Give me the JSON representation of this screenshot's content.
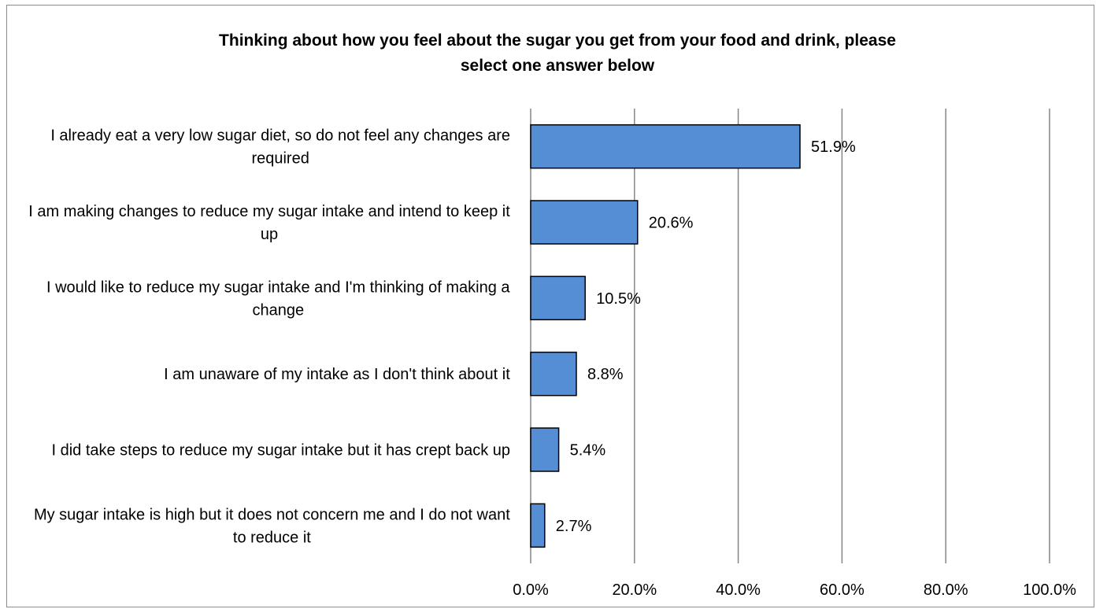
{
  "chart_data": {
    "type": "bar",
    "orientation": "horizontal",
    "title": "Thinking about how you feel about the sugar you get from your food and drink, please select one answer below",
    "categories": [
      "I already eat a very low sugar diet, so do not feel any changes are required",
      "I am making changes to reduce my sugar intake and intend to keep it up",
      "I would like to reduce my sugar intake and I'm thinking of making a change",
      "I am unaware of my intake as I don't think about it",
      "I did take steps to reduce my sugar intake but it has crept back up",
      "My sugar intake is high but it does not concern me and I do not want to reduce it"
    ],
    "values": [
      51.9,
      20.6,
      10.5,
      8.8,
      5.4,
      2.7
    ],
    "data_labels": [
      "51.9%",
      "20.6%",
      "10.5%",
      "8.8%",
      "5.4%",
      "2.7%"
    ],
    "xlim": [
      0,
      100
    ],
    "xticks": [
      0,
      20,
      40,
      60,
      80,
      100
    ],
    "xtick_labels": [
      "0.0%",
      "20.0%",
      "40.0%",
      "60.0%",
      "80.0%",
      "100.0%"
    ],
    "xlabel": "",
    "ylabel": "",
    "grid": "vertical",
    "legend": "none",
    "bar_color": "#558ed5",
    "bar_edge_color": "#000000",
    "grid_color": "#868686"
  }
}
